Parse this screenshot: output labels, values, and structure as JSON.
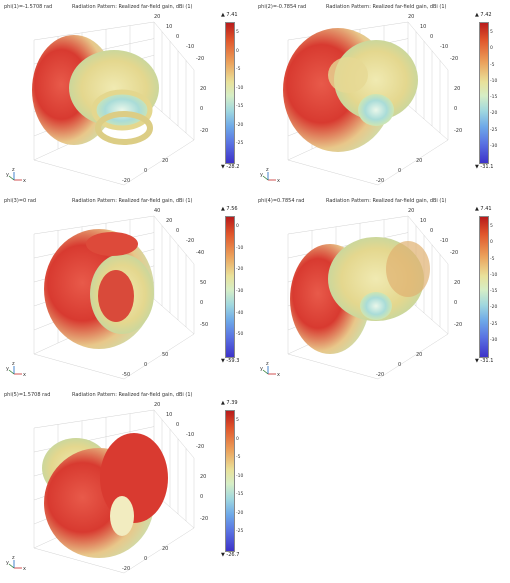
{
  "panels": [
    {
      "phi_label": "phi(1)=-1.5708 rad",
      "heading": "Radiation Pattern: Realized far-field gain, dBi (1)",
      "max": "▲ 7.41",
      "min": "▼ -28.2",
      "colorbar_ticks": [
        "5",
        "0",
        "-5",
        "-10",
        "-15",
        "-20",
        "-25"
      ],
      "axis_ticks": [
        "20",
        "10",
        "0",
        "-10",
        "-20",
        "20",
        "0",
        "-20",
        "20",
        "0",
        "-20"
      ],
      "triad": [
        "y",
        "z",
        "x"
      ]
    },
    {
      "phi_label": "phi(2)=-0.7854 rad",
      "heading": "Radiation Pattern: Realized far-field gain, dBi (1)",
      "max": "▲ 7.42",
      "min": "▼ -31.1",
      "colorbar_ticks": [
        "5",
        "0",
        "-5",
        "-10",
        "-15",
        "-20",
        "-25",
        "-30"
      ],
      "axis_ticks": [
        "20",
        "10",
        "0",
        "-10",
        "-20",
        "20",
        "0",
        "-20",
        "20",
        "0",
        "-20"
      ],
      "triad": [
        "y",
        "z",
        "x"
      ]
    },
    {
      "phi_label": "phi(3)=0 rad",
      "heading": "Radiation Pattern: Realized far-field gain, dBi (1)",
      "max": "▲ 7.56",
      "min": "▼ -59.3",
      "colorbar_ticks": [
        "0",
        "-10",
        "-20",
        "-30",
        "-40",
        "-50"
      ],
      "axis_ticks": [
        "40",
        "20",
        "0",
        "-20",
        "-40",
        "50",
        "0",
        "-50",
        "50",
        "0",
        "-50"
      ],
      "triad": [
        "y",
        "z",
        "x"
      ]
    },
    {
      "phi_label": "phi(4)=0.7854 rad",
      "heading": "Radiation Pattern: Realized far-field gain, dBi (1)",
      "max": "▲ 7.41",
      "min": "▼ -31.1",
      "colorbar_ticks": [
        "5",
        "0",
        "-5",
        "-10",
        "-15",
        "-20",
        "-25",
        "-30"
      ],
      "axis_ticks": [
        "20",
        "10",
        "0",
        "-10",
        "-20",
        "20",
        "0",
        "-20",
        "20",
        "0",
        "-20"
      ],
      "triad": [
        "y",
        "z",
        "x"
      ]
    },
    {
      "phi_label": "phi(5)=1.5708 rad",
      "heading": "Radiation Pattern: Realized far-field gain, dBi (1)",
      "max": "▲ 7.39",
      "min": "▼ -26.7",
      "colorbar_ticks": [
        "5",
        "0",
        "-5",
        "-10",
        "-15",
        "-20",
        "-25"
      ],
      "axis_ticks": [
        "20",
        "10",
        "0",
        "-10",
        "-20",
        "20",
        "0",
        "-20",
        "20",
        "0",
        "-20"
      ],
      "triad": [
        "y",
        "z",
        "x"
      ]
    }
  ]
}
